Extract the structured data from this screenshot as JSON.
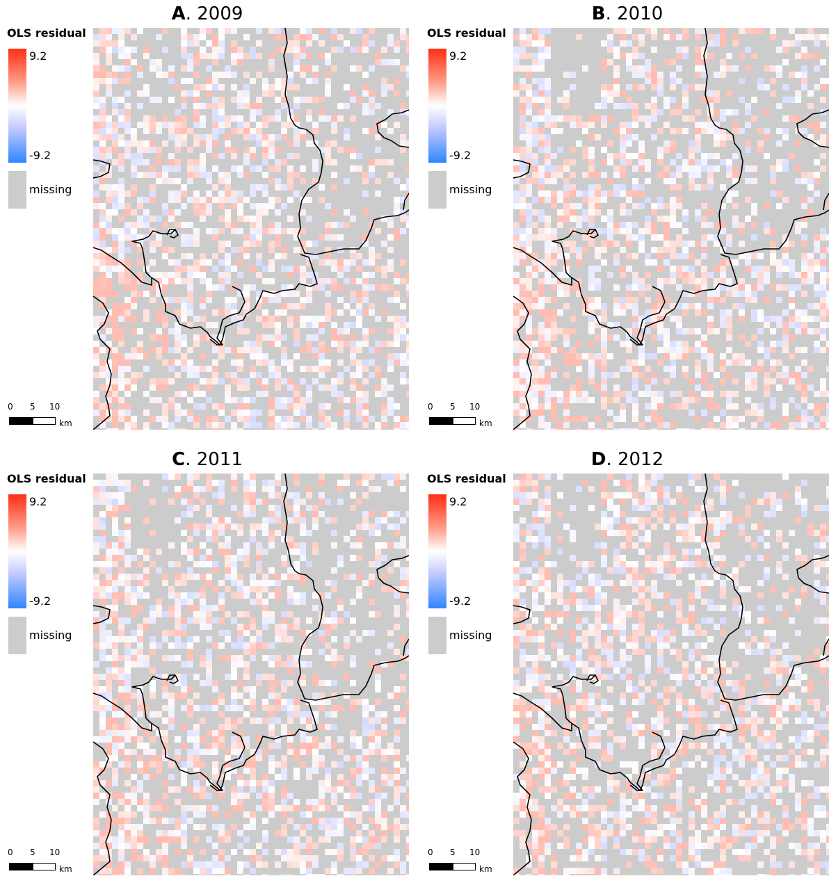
{
  "legend": {
    "title": "OLS residual",
    "max_label": "9.2",
    "min_label": "-9.2",
    "missing_label": "missing",
    "color_high": "#ff2e14",
    "color_mid": "#ffffff",
    "color_low": "#2f86ff",
    "color_missing": "#cccccc"
  },
  "scale_bar": {
    "ticks": [
      "0",
      "5",
      "10"
    ],
    "unit": "km"
  },
  "panels": [
    {
      "letter": "A",
      "year": "2009"
    },
    {
      "letter": "B",
      "year": "2010"
    },
    {
      "letter": "C",
      "year": "2011"
    },
    {
      "letter": "D",
      "year": "2012"
    }
  ]
}
